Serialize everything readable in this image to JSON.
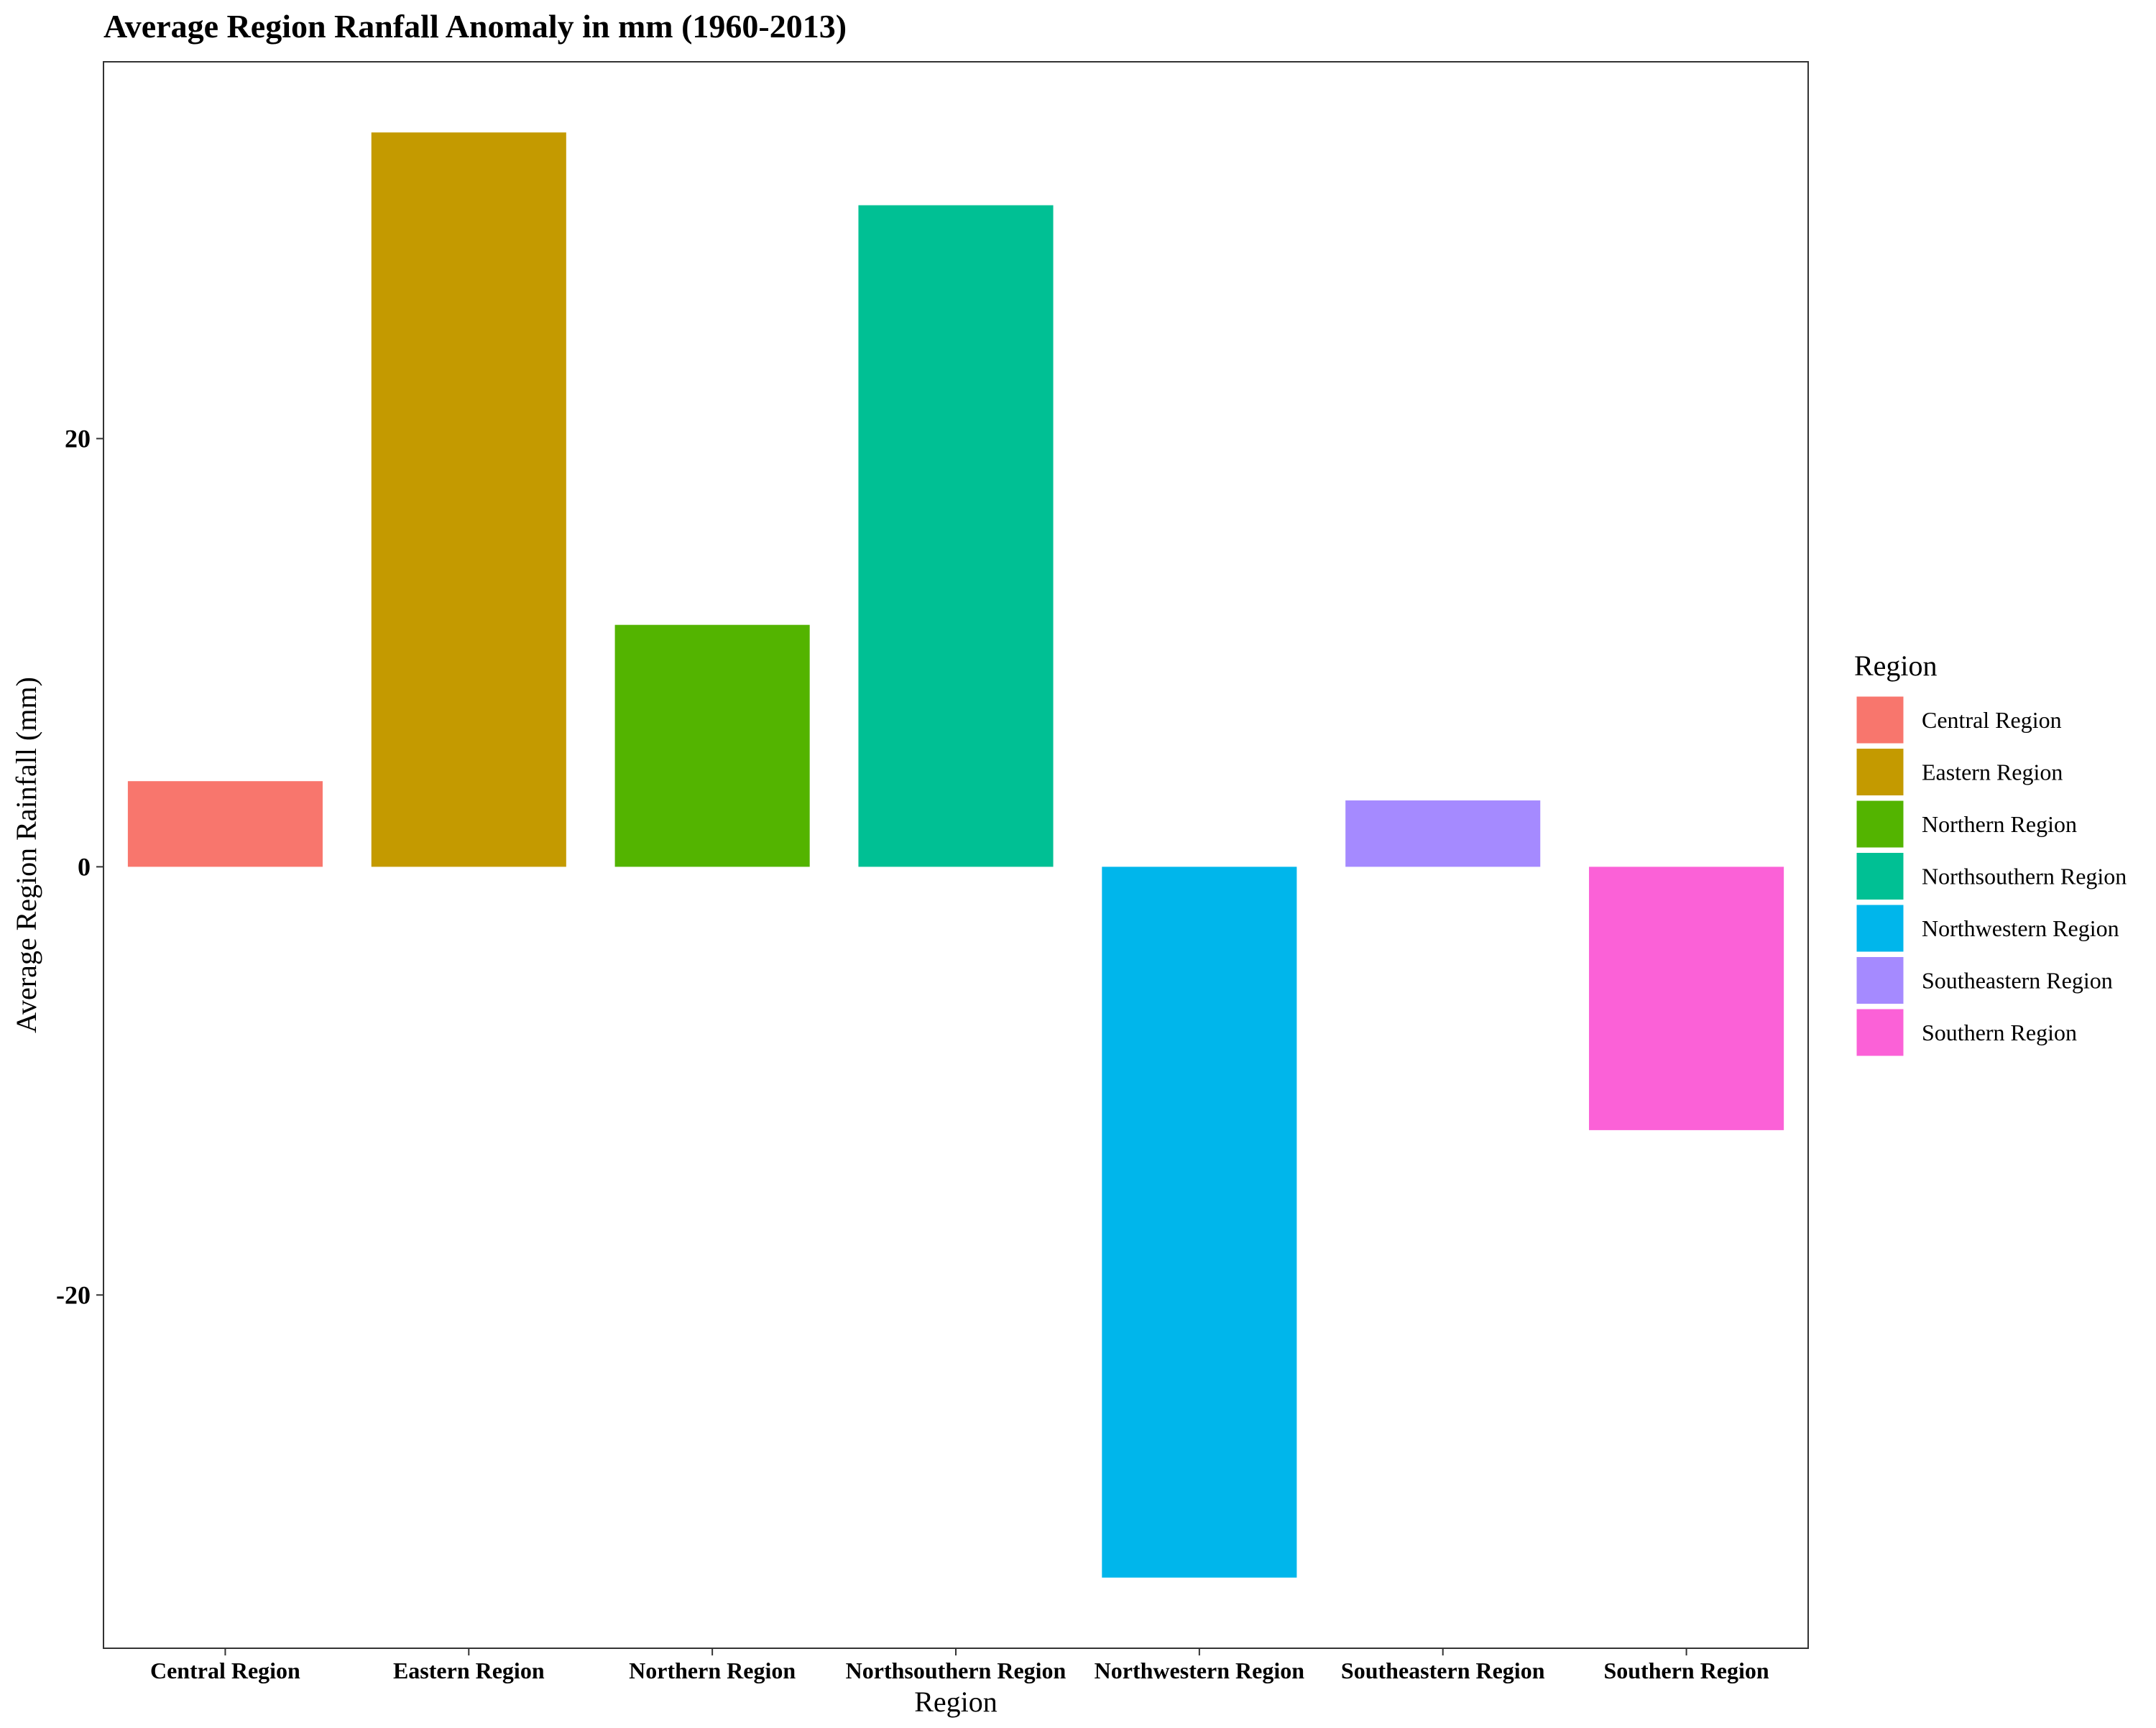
{
  "chart_data": {
    "type": "bar",
    "title": "Average Region Ranfall Anomaly in mm (1960-2013)",
    "xlabel": "Region",
    "ylabel": "Average Region Rainfall (mm)",
    "categories": [
      "Central Region",
      "Eastern Region",
      "Northern Region",
      "Northsouthern Region",
      "Northwestern Region",
      "Southeastern Region",
      "Southern Region"
    ],
    "values": [
      4.0,
      34.3,
      11.3,
      30.9,
      -33.2,
      3.1,
      -12.3
    ],
    "colors": [
      "#F8766D",
      "#C49A00",
      "#53B400",
      "#00C094",
      "#00B6EB",
      "#A58AFF",
      "#FB61D7"
    ],
    "ylim": [
      -36.5,
      37.6
    ],
    "yticks": [
      -20,
      0,
      20
    ],
    "ytick_labels": [
      "-20",
      "0",
      "20"
    ],
    "grid": false,
    "legend": {
      "title": "Region",
      "placement": "right",
      "entries": [
        "Central Region",
        "Eastern Region",
        "Northern Region",
        "Northsouthern Region",
        "Northwestern Region",
        "Southeastern Region",
        "Southern Region"
      ]
    }
  }
}
